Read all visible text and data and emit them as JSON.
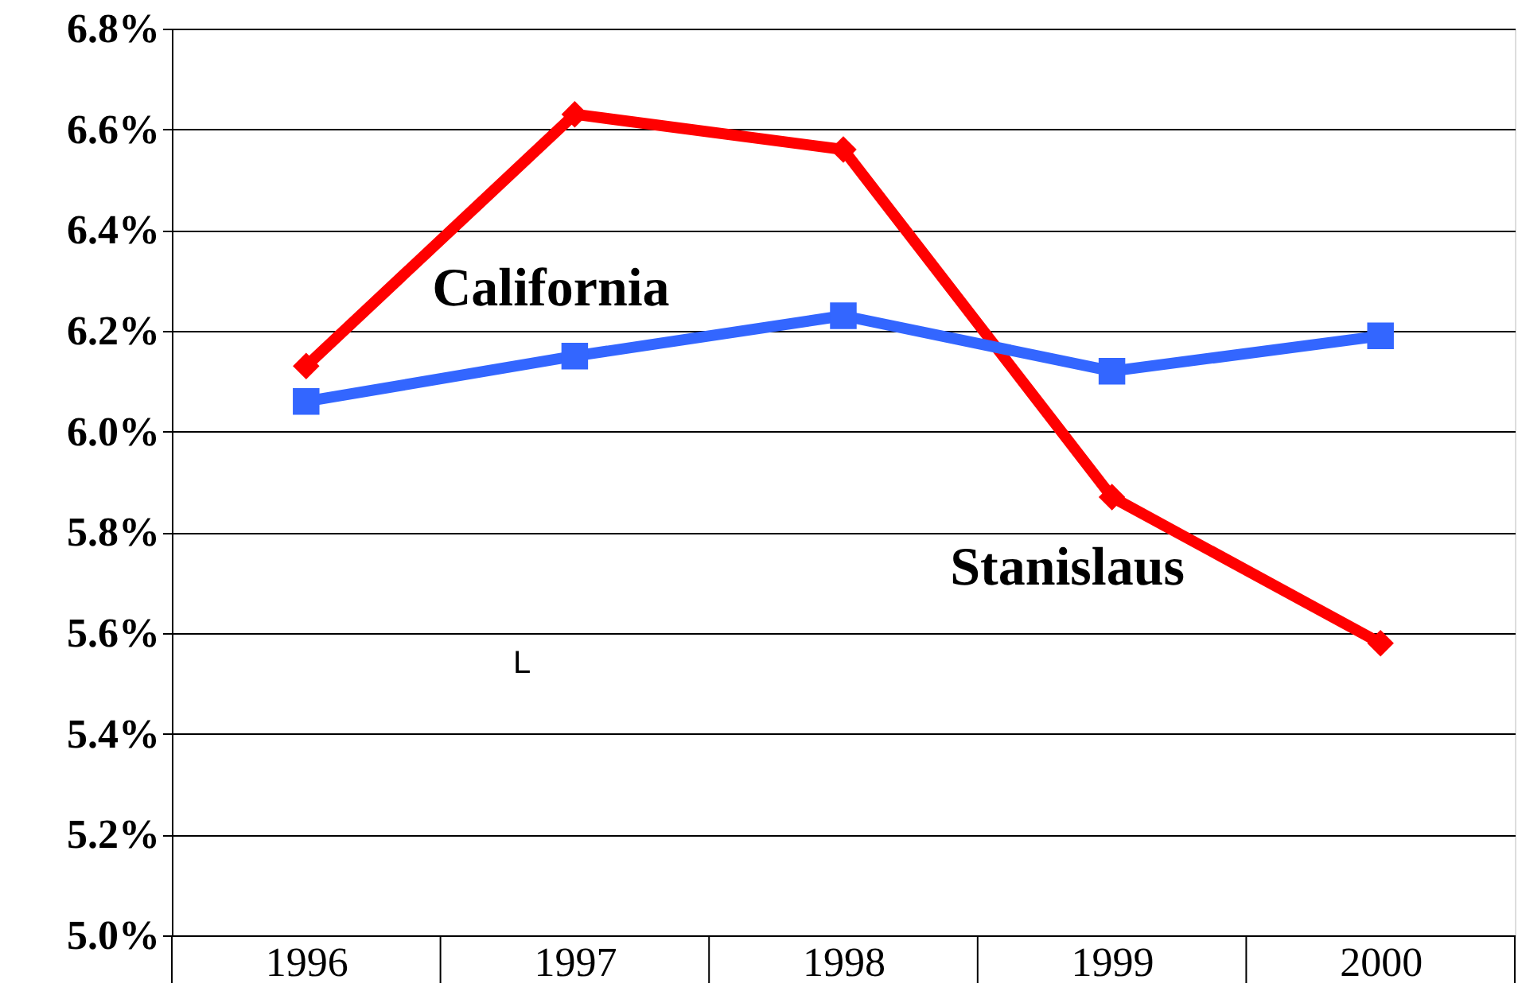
{
  "chart_data": {
    "type": "line",
    "categories": [
      "1996",
      "1997",
      "1998",
      "1999",
      "2000"
    ],
    "series": [
      {
        "name": "Stanislaus",
        "color": "#ff0000",
        "marker": "diamond",
        "values": [
          6.13,
          6.63,
          6.56,
          5.87,
          5.58
        ]
      },
      {
        "name": "California",
        "color": "#3366ff",
        "marker": "square",
        "values": [
          6.06,
          6.15,
          6.23,
          6.12,
          6.19
        ]
      }
    ],
    "ylim": [
      5.0,
      6.8
    ],
    "yticks": [
      {
        "value": 5.0,
        "label": "5.0%"
      },
      {
        "value": 5.2,
        "label": "5.2%"
      },
      {
        "value": 5.4,
        "label": "5.4%"
      },
      {
        "value": 5.6,
        "label": "5.6%"
      },
      {
        "value": 5.8,
        "label": "5.8%"
      },
      {
        "value": 6.0,
        "label": "6.0%"
      },
      {
        "value": 6.2,
        "label": "6.2%"
      },
      {
        "value": 6.4,
        "label": "6.4%"
      },
      {
        "value": 6.6,
        "label": "6.6%"
      },
      {
        "value": 6.8,
        "label": "6.8%"
      }
    ],
    "grid": "y",
    "annotations": [
      "L"
    ]
  }
}
